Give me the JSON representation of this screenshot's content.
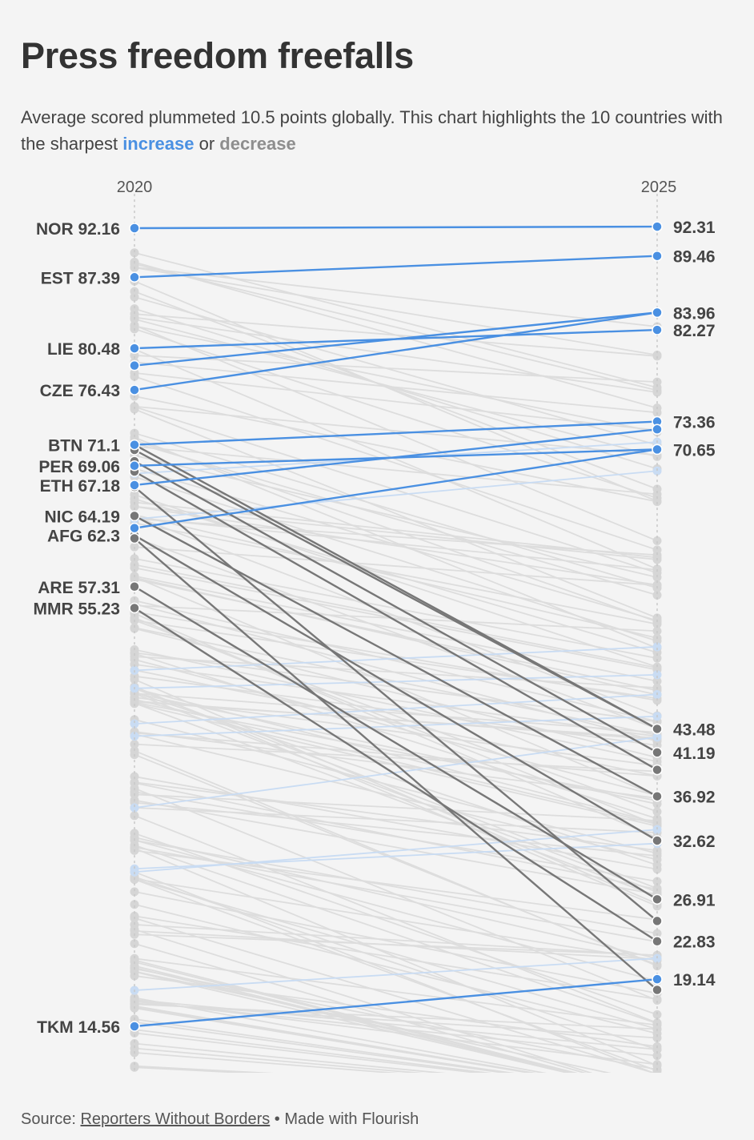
{
  "title": "Press freedom freefalls",
  "subtitle": {
    "text_before": "Average scored plummeted 10.5 points globally. This chart highlights the 10 countries with the sharpest ",
    "increase_word": "increase",
    "connector": " or ",
    "decrease_word": "decrease"
  },
  "colors": {
    "increase": "#4a90e2",
    "decrease": "#777777",
    "background_line": "#dddddd",
    "background_dot": "#d6d6d6",
    "faint_blue": "#c9dcf3"
  },
  "footer": {
    "source_label": "Source: ",
    "source_link": "Reporters Without Borders",
    "separator": " • ",
    "made_with": "Made with Flourish"
  },
  "chart_data": {
    "type": "slope",
    "x": [
      "2020",
      "2025"
    ],
    "series": [
      {
        "name": "NOR",
        "values": [
          92.16,
          92.31
        ],
        "group": "increase"
      },
      {
        "name": "EST",
        "values": [
          87.39,
          89.46
        ],
        "group": "increase"
      },
      {
        "name": "LIE",
        "values": [
          80.48,
          82.27
        ],
        "group": "increase"
      },
      {
        "name": "",
        "values": [
          78.8,
          83.96
        ],
        "group": "increase"
      },
      {
        "name": "CZE",
        "values": [
          76.43,
          83.96
        ],
        "group": "increase"
      },
      {
        "name": "",
        "values": [
          71.1,
          73.36
        ],
        "group": "increase"
      },
      {
        "name": "PER",
        "values": [
          69.06,
          70.65
        ],
        "group": "increase"
      },
      {
        "name": "ETH",
        "values": [
          67.18,
          72.6
        ],
        "group": "increase"
      },
      {
        "name": "",
        "values": [
          63.0,
          70.65
        ],
        "group": "increase"
      },
      {
        "name": "TKM",
        "values": [
          14.56,
          19.14
        ],
        "group": "increase"
      },
      {
        "name": "BTN",
        "values": [
          71.1,
          43.48
        ],
        "group": "decrease"
      },
      {
        "name": "",
        "values": [
          70.6,
          43.48
        ],
        "group": "decrease"
      },
      {
        "name": "",
        "values": [
          69.5,
          41.19
        ],
        "group": "decrease"
      },
      {
        "name": "",
        "values": [
          68.5,
          39.5
        ],
        "group": "decrease"
      },
      {
        "name": "NIC",
        "values": [
          64.19,
          36.92
        ],
        "group": "decrease"
      },
      {
        "name": "AFG",
        "values": [
          62.3,
          32.62
        ],
        "group": "decrease"
      },
      {
        "name": "",
        "values": [
          62.0,
          18.1
        ],
        "group": "decrease"
      },
      {
        "name": "ARE",
        "values": [
          57.31,
          26.91
        ],
        "group": "decrease"
      },
      {
        "name": "MMR",
        "values": [
          55.23,
          22.83
        ],
        "group": "decrease"
      },
      {
        "name": "",
        "values": [
          67.0,
          24.8
        ],
        "group": "decrease"
      }
    ],
    "left_labels": [
      {
        "text": "NOR 92.16",
        "value": 92.16
      },
      {
        "text": "EST 87.39",
        "value": 87.39
      },
      {
        "text": "LIE 80.48",
        "value": 80.48
      },
      {
        "text": "CZE 76.43",
        "value": 76.43
      },
      {
        "text": "BTN 71.1",
        "value": 71.1
      },
      {
        "text": "PER 69.06",
        "value": 69.06
      },
      {
        "text": "ETH 67.18",
        "value": 67.18
      },
      {
        "text": "NIC 64.19",
        "value": 64.19
      },
      {
        "text": "AFG 62.3",
        "value": 62.3
      },
      {
        "text": "ARE 57.31",
        "value": 57.31
      },
      {
        "text": "MMR 55.23",
        "value": 55.23
      },
      {
        "text": "TKM 14.56",
        "value": 14.56
      }
    ],
    "right_labels": [
      {
        "text": "92.31",
        "value": 92.31
      },
      {
        "text": "89.46",
        "value": 89.46
      },
      {
        "text": "83.96",
        "value": 83.96
      },
      {
        "text": "82.27",
        "value": 82.27
      },
      {
        "text": "73.36",
        "value": 73.36
      },
      {
        "text": "70.65",
        "value": 70.65
      },
      {
        "text": "43.48",
        "value": 43.48
      },
      {
        "text": "41.19",
        "value": 41.19
      },
      {
        "text": "36.92",
        "value": 36.92
      },
      {
        "text": "32.62",
        "value": 32.62
      },
      {
        "text": "26.91",
        "value": 26.91
      },
      {
        "text": "22.83",
        "value": 22.83
      },
      {
        "text": "19.14",
        "value": 19.14
      }
    ],
    "grid": false,
    "legend": "none"
  }
}
